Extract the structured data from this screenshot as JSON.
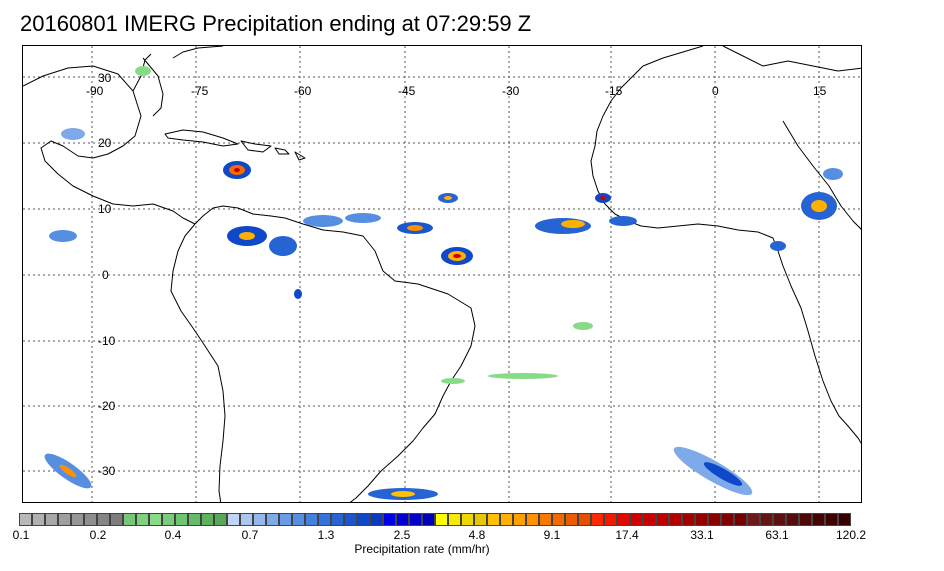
{
  "title": "20160801 IMERG Precipitation ending at 07:29:59 Z",
  "map": {
    "lon_labels": [
      "-90",
      "-75",
      "-60",
      "-45",
      "-30",
      "-15",
      "0",
      "15"
    ],
    "lat_labels": [
      "30",
      "20",
      "10",
      "0",
      "-10",
      "-20",
      "-30"
    ]
  },
  "colorbar": {
    "units_label": "Precipitation rate (mm/hr)",
    "tick_labels": [
      "0.1",
      "0.2",
      "0.4",
      "0.7",
      "1.3",
      "2.5",
      "4.8",
      "9.1",
      "17.4",
      "33.1",
      "63.1",
      "120.2"
    ],
    "colors": [
      "#b9b9b9",
      "#b1b1b1",
      "#a8a8a8",
      "#9f9f9f",
      "#969696",
      "#8e8e8e",
      "#858585",
      "#7c7c7c",
      "#77c777",
      "#7fd17f",
      "#87db87",
      "#78cc78",
      "#6fc46f",
      "#66bb66",
      "#5eb25e",
      "#57a957",
      "#c0d4f6",
      "#aac6f2",
      "#94b8ee",
      "#7eaaea",
      "#6a9ce6",
      "#568ee2",
      "#4480de",
      "#3372da",
      "#2664d4",
      "#1a56ce",
      "#0f48c8",
      "#0a3abe",
      "#0000e6",
      "#0000d6",
      "#0000c8",
      "#0000b9",
      "#ffff00",
      "#f6ea00",
      "#efd800",
      "#e8c600",
      "#ffc000",
      "#ffb000",
      "#ffa000",
      "#ff9000",
      "#f87800",
      "#f26a00",
      "#ec5c00",
      "#e64e00",
      "#ff2a00",
      "#f01a00",
      "#e00a00",
      "#d00000",
      "#c80000",
      "#bc0000",
      "#b00000",
      "#a40000",
      "#980000",
      "#8c0000",
      "#800000",
      "#760000",
      "#6e1818",
      "#661414",
      "#5e1010",
      "#560c0c",
      "#4e0808",
      "#460404",
      "#3e0000",
      "#360000"
    ]
  },
  "legend_positions_note": ""
}
